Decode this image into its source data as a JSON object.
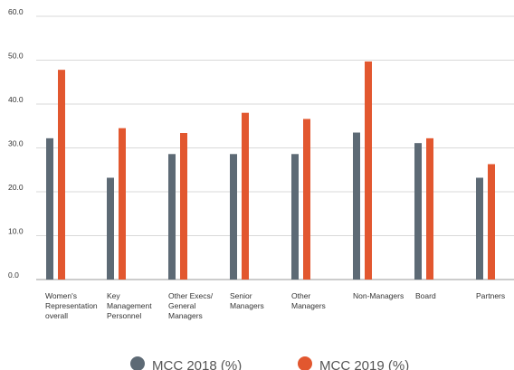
{
  "chart_data": {
    "type": "bar",
    "ylim": [
      0,
      60
    ],
    "yticks": [
      "0.0",
      "10.0",
      "20.0",
      "30.0",
      "40.0",
      "50.0",
      "60.0"
    ],
    "grid": true,
    "legend_position": "bottom",
    "categories": [
      [
        "Women's",
        "Representation",
        "overall"
      ],
      [
        "Key",
        "Management",
        "Personnel"
      ],
      [
        "Other Execs/",
        "General",
        "Managers"
      ],
      [
        "Senior",
        "Managers"
      ],
      [
        "Other",
        "Managers"
      ],
      [
        "Non-Managers"
      ],
      [
        "Board"
      ],
      [
        "Partners"
      ]
    ],
    "series": [
      {
        "name": "MCC 2018 (%)",
        "color": "#5d6a75",
        "values": [
          32.2,
          23.2,
          28.6,
          28.6,
          28.6,
          33.5,
          31.1,
          23.2
        ]
      },
      {
        "name": "MCC 2019 (%)",
        "color": "#e2572f",
        "values": [
          47.8,
          34.5,
          33.4,
          38.0,
          36.6,
          49.7,
          32.2,
          26.3
        ]
      }
    ]
  }
}
